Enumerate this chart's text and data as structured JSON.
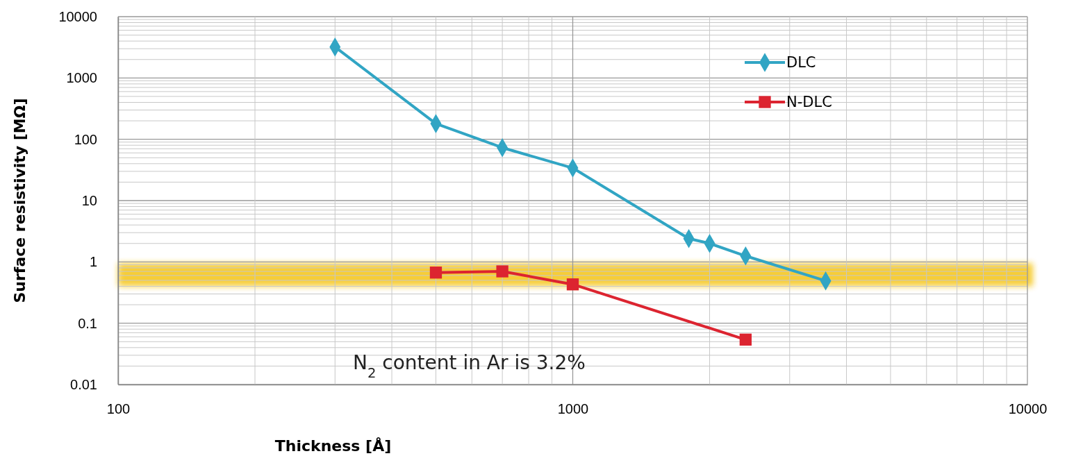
{
  "chart_data": {
    "type": "line",
    "xlabel": "Thickness [Å]",
    "ylabel": "Surface resistivity [MΩ]",
    "log": "xy",
    "xlim": [
      100,
      10000
    ],
    "xticks": [
      100,
      1000,
      10000
    ],
    "ylim": [
      0.01,
      10000
    ],
    "yticks": [
      0.01,
      0.1,
      1,
      10,
      100,
      1000,
      10000
    ],
    "grid": true,
    "legend": "top right",
    "line_style": "solid",
    "series": [
      {
        "name": "DLC",
        "color": "#31a5c4",
        "marker": "diamond",
        "x": [
          300,
          500,
          700,
          1000,
          1800,
          2000,
          2400,
          3600
        ],
        "values": [
          3200,
          180,
          73,
          34,
          2.4,
          2.0,
          1.25,
          0.49
        ]
      },
      {
        "name": "N-DLC",
        "color": "#dc2430",
        "marker": "square",
        "x": [
          500,
          700,
          1000,
          2400
        ],
        "values": [
          0.67,
          0.7,
          0.43,
          0.054
        ]
      }
    ],
    "bands": [
      {
        "axis": "y",
        "from": 0.4,
        "to": 0.95,
        "color": "#f5c518"
      }
    ],
    "annotations": [
      "N$_{2}$ content in Ar is 3.2%"
    ]
  }
}
